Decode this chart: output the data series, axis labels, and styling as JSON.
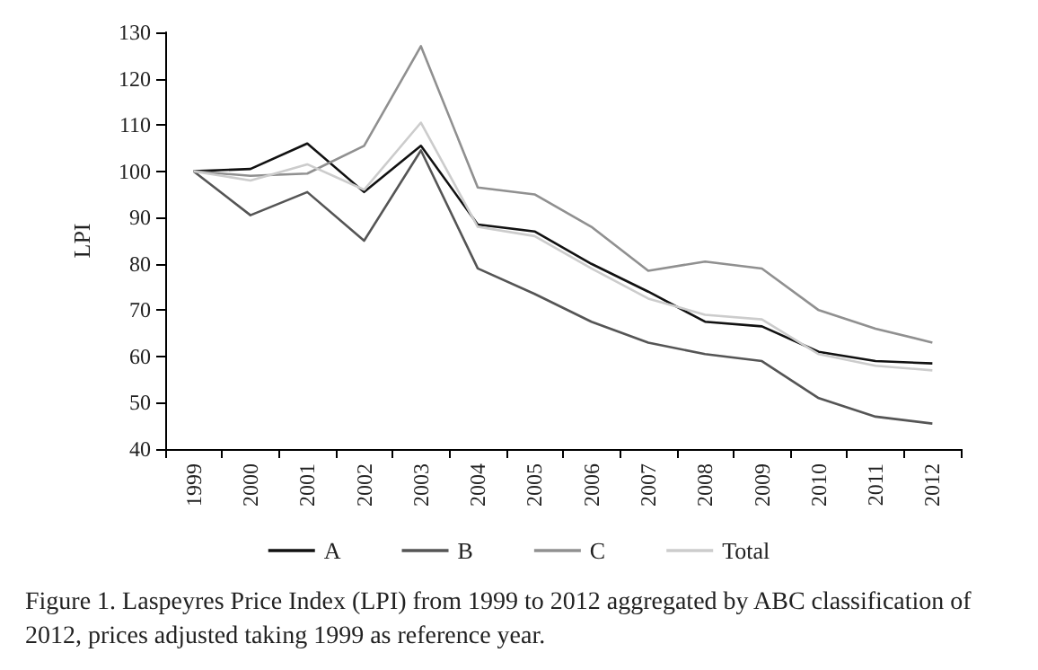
{
  "chart_data": {
    "type": "line",
    "ylabel": "LPI",
    "categories": [
      "1999",
      "2000",
      "2001",
      "2002",
      "2003",
      "2004",
      "2005",
      "2006",
      "2007",
      "2008",
      "2009",
      "2010",
      "2011",
      "2012"
    ],
    "series": [
      {
        "name": "A",
        "color": "#111111",
        "values": [
          100,
          100.5,
          106,
          95.5,
          105.5,
          88.5,
          87,
          80,
          74,
          67.5,
          66.5,
          61,
          59,
          58.5
        ]
      },
      {
        "name": "B",
        "color": "#555555",
        "values": [
          100,
          90.5,
          95.5,
          85,
          104.5,
          79,
          73.5,
          67.5,
          63,
          60.5,
          59,
          51,
          47,
          45.5
        ]
      },
      {
        "name": "C",
        "color": "#909090",
        "values": [
          100,
          99,
          99.5,
          105.5,
          127,
          96.5,
          95,
          88,
          78.5,
          80.5,
          79,
          70,
          66,
          63
        ]
      },
      {
        "name": "Total",
        "color": "#cccccc",
        "values": [
          100,
          98,
          101.5,
          96,
          110.5,
          88,
          86,
          79,
          72.5,
          69,
          68,
          60.5,
          58,
          57
        ]
      }
    ],
    "ylim": [
      40,
      130
    ],
    "yticks": [
      40,
      50,
      60,
      70,
      80,
      90,
      100,
      110,
      120,
      130
    ],
    "grid": false,
    "legend": "bottom",
    "marker": "none",
    "line_style": "solid",
    "annotations": [
      "Figure 1. Laspeyres Price Index (LPI) from 1999 to 2012 aggregated by ABC classification of 2012, prices adjusted taking 1999 as reference year."
    ]
  }
}
